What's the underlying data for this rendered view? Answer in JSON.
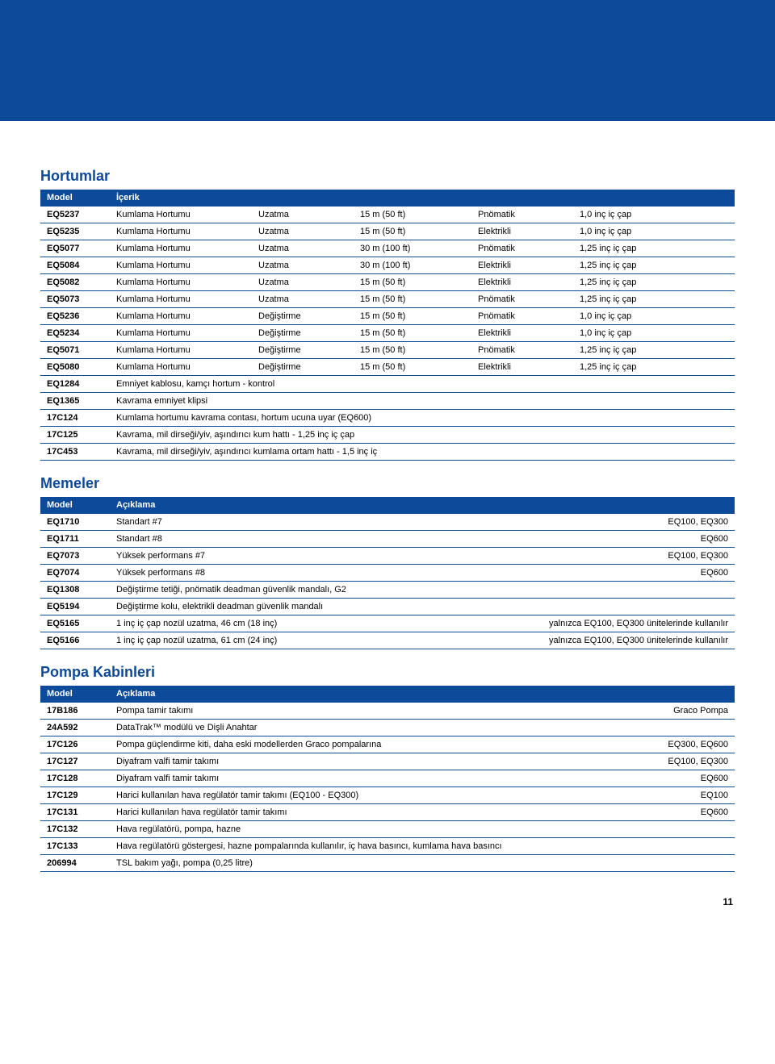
{
  "hortumlar": {
    "title": "Hortumlar",
    "headers": {
      "model": "Model",
      "icerik": "İçerik"
    },
    "rows": [
      {
        "model": "EQ5237",
        "desc": "Kumlama Hortumu",
        "op": "Uzatma",
        "len": "15 m (50 ft)",
        "type": "Pnömatik",
        "dia": "1,0 inç iç çap"
      },
      {
        "model": "EQ5235",
        "desc": "Kumlama Hortumu",
        "op": "Uzatma",
        "len": "15 m (50 ft)",
        "type": "Elektrikli",
        "dia": "1,0 inç iç çap"
      },
      {
        "model": "EQ5077",
        "desc": "Kumlama Hortumu",
        "op": "Uzatma",
        "len": "30 m (100 ft)",
        "type": "Pnömatik",
        "dia": "1,25 inç iç çap"
      },
      {
        "model": "EQ5084",
        "desc": "Kumlama Hortumu",
        "op": "Uzatma",
        "len": "30 m (100 ft)",
        "type": "Elektrikli",
        "dia": "1,25 inç iç çap"
      },
      {
        "model": "EQ5082",
        "desc": "Kumlama Hortumu",
        "op": "Uzatma",
        "len": "15 m (50 ft)",
        "type": "Elektrikli",
        "dia": "1,25 inç iç çap"
      },
      {
        "model": "EQ5073",
        "desc": "Kumlama Hortumu",
        "op": "Uzatma",
        "len": "15 m (50 ft)",
        "type": "Pnömatik",
        "dia": "1,25 inç iç çap"
      },
      {
        "model": "EQ5236",
        "desc": "Kumlama Hortumu",
        "op": "Değiştirme",
        "len": "15 m (50 ft)",
        "type": "Pnömatik",
        "dia": "1,0 inç iç çap"
      },
      {
        "model": "EQ5234",
        "desc": "Kumlama Hortumu",
        "op": "Değiştirme",
        "len": "15 m (50 ft)",
        "type": "Elektrikli",
        "dia": "1,0 inç iç çap"
      },
      {
        "model": "EQ5071",
        "desc": "Kumlama Hortumu",
        "op": "Değiştirme",
        "len": "15 m (50 ft)",
        "type": "Pnömatik",
        "dia": "1,25 inç iç çap"
      },
      {
        "model": "EQ5080",
        "desc": "Kumlama Hortumu",
        "op": "Değiştirme",
        "len": "15 m (50 ft)",
        "type": "Elektrikli",
        "dia": "1,25 inç iç çap"
      },
      {
        "model": "EQ1284",
        "full": "Emniyet kablosu, kamçı hortum - kontrol"
      },
      {
        "model": "EQ1365",
        "full": "Kavrama emniyet klipsi"
      },
      {
        "model": "17C124",
        "full": "Kumlama hortumu kavrama contası, hortum ucuna uyar (EQ600)"
      },
      {
        "model": "17C125",
        "full": "Kavrama, mil dirseği/yiv, aşındırıcı kum hattı - 1,25 inç iç çap"
      },
      {
        "model": "17C453",
        "full": "Kavrama, mil dirseği/yiv, aşındırıcı kumlama ortam hattı - 1,5 inç iç"
      }
    ]
  },
  "memeler": {
    "title": "Memeler",
    "headers": {
      "model": "Model",
      "aciklama": "Açıklama"
    },
    "rows": [
      {
        "model": "EQ1710",
        "desc": "Standart #7",
        "note": "EQ100, EQ300"
      },
      {
        "model": "EQ1711",
        "desc": "Standart #8",
        "note": "EQ600"
      },
      {
        "model": "EQ7073",
        "desc": "Yüksek performans #7",
        "note": "EQ100, EQ300"
      },
      {
        "model": "EQ7074",
        "desc": "Yüksek performans #8",
        "note": "EQ600"
      },
      {
        "model": "EQ1308",
        "desc": "Değiştirme tetiği, pnömatik deadman güvenlik mandalı, G2",
        "note": ""
      },
      {
        "model": "EQ5194",
        "desc": "Değiştirme kolu, elektrikli deadman güvenlik mandalı",
        "note": ""
      },
      {
        "model": "EQ5165",
        "desc": "1 inç iç çap nozül uzatma, 46 cm (18 inç)",
        "note": "yalnızca EQ100, EQ300 ünitelerinde kullanılır"
      },
      {
        "model": "EQ5166",
        "desc": "1 inç iç çap nozül uzatma, 61 cm (24 inç)",
        "note": "yalnızca EQ100, EQ300 ünitelerinde kullanılır"
      }
    ]
  },
  "pompa": {
    "title": "Pompa Kabinleri",
    "headers": {
      "model": "Model",
      "aciklama": "Açıklama"
    },
    "rows": [
      {
        "model": "17B186",
        "desc": "Pompa tamir takımı",
        "note": "Graco Pompa"
      },
      {
        "model": "24A592",
        "desc": "DataTrak™ modülü ve Dişli Anahtar",
        "note": ""
      },
      {
        "model": "17C126",
        "desc": "Pompa güçlendirme kiti, daha eski modellerden Graco pompalarına",
        "note": "EQ300, EQ600"
      },
      {
        "model": "17C127",
        "desc": "Diyafram valfi tamir takımı",
        "note": "EQ100, EQ300"
      },
      {
        "model": "17C128",
        "desc": "Diyafram valfi tamir takımı",
        "note": "EQ600"
      },
      {
        "model": "17C129",
        "desc": "Harici kullanılan hava regülatör tamir takımı (EQ100 - EQ300)",
        "note": "EQ100"
      },
      {
        "model": "17C131",
        "desc": "Harici kullanılan hava regülatör tamir takımı",
        "note": "EQ600"
      },
      {
        "model": "17C132",
        "desc": "Hava regülatörü, pompa, hazne",
        "note": ""
      },
      {
        "model": "17C133",
        "desc": "Hava regülatörü göstergesi, hazne pompalarında kullanılır, iç hava basıncı, kumlama hava basıncı",
        "note": ""
      },
      {
        "model": "206994",
        "desc": "TSL bakım yağı, pompa (0,25 litre)",
        "note": ""
      }
    ]
  },
  "pagenum": "11"
}
